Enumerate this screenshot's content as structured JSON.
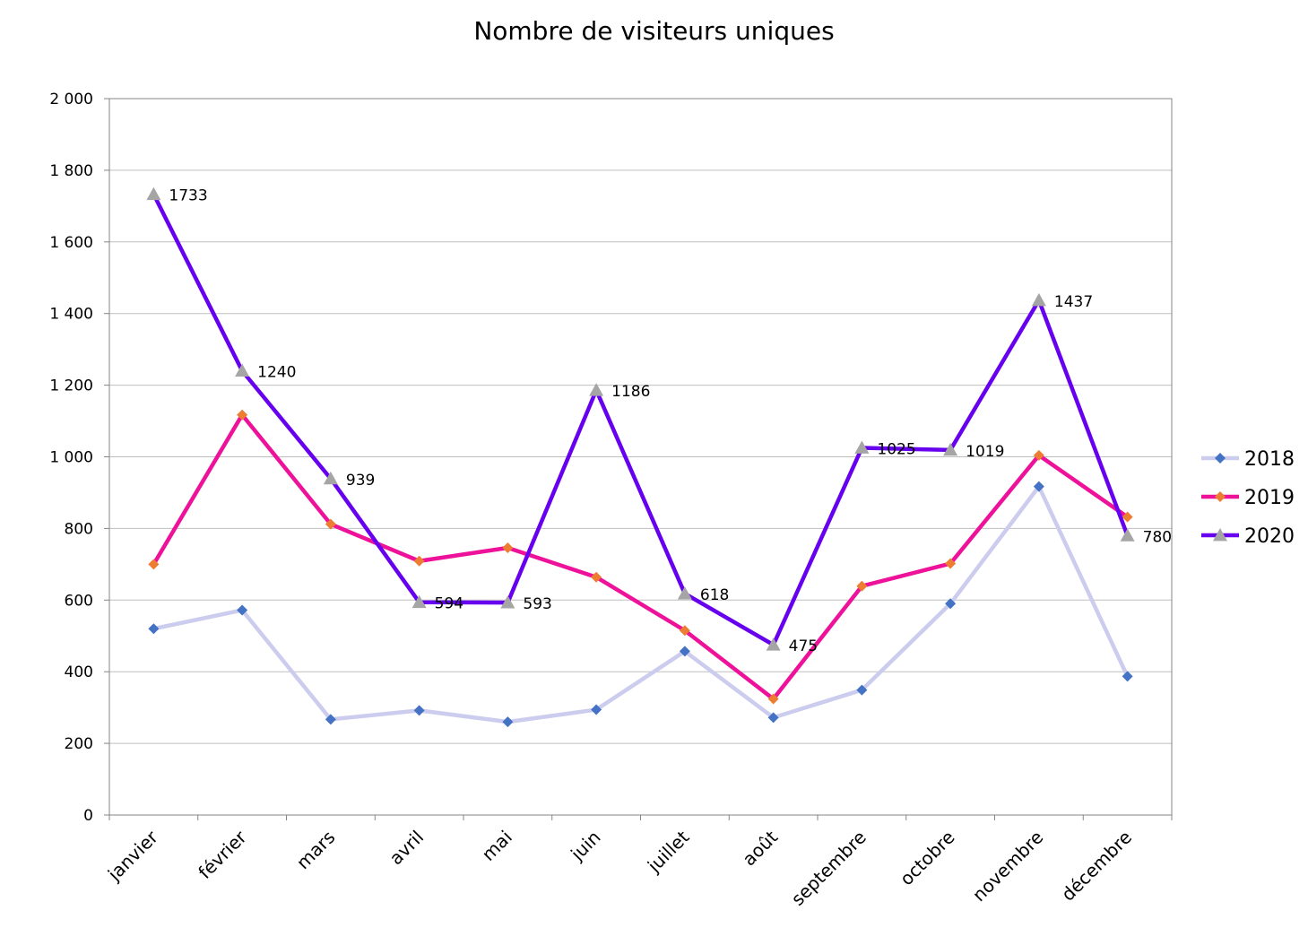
{
  "chart_data": {
    "type": "line",
    "title": "Nombre de visiteurs uniques",
    "xlabel": "",
    "ylabel": "",
    "categories": [
      "janvier",
      "février",
      "mars",
      "avril",
      "mai",
      "juin",
      "juillet",
      "août",
      "septembre",
      "octobre",
      "novembre",
      "décembre"
    ],
    "ylim": [
      0,
      2000
    ],
    "yticks": [
      0,
      200,
      400,
      600,
      800,
      1000,
      1200,
      1400,
      1600,
      1800,
      2000
    ],
    "ytick_labels": [
      "0",
      "200",
      "400",
      "600",
      "800",
      "1 000",
      "1 200",
      "1 400",
      "1 600",
      "1 800",
      "2 000"
    ],
    "grid": true,
    "legend_position": "right",
    "series": [
      {
        "name": "2018",
        "values": [
          520,
          572,
          267,
          292,
          260,
          294,
          457,
          272,
          349,
          590,
          917,
          387
        ],
        "line_color": "#ccccee",
        "marker": "diamond",
        "marker_color": "#4472c4",
        "show_data_labels": false
      },
      {
        "name": "2019",
        "values": [
          700,
          1117,
          812,
          709,
          746,
          664,
          515,
          324,
          639,
          702,
          1004,
          832
        ],
        "line_color": "#ee1199",
        "marker": "diamond",
        "marker_color": "#ed7d31",
        "show_data_labels": false
      },
      {
        "name": "2020",
        "values": [
          1733,
          1240,
          939,
          594,
          593,
          1186,
          618,
          475,
          1025,
          1019,
          1437,
          780
        ],
        "line_color": "#6600ee",
        "marker": "triangle",
        "marker_color": "#a5a5a5",
        "show_data_labels": true
      }
    ]
  }
}
